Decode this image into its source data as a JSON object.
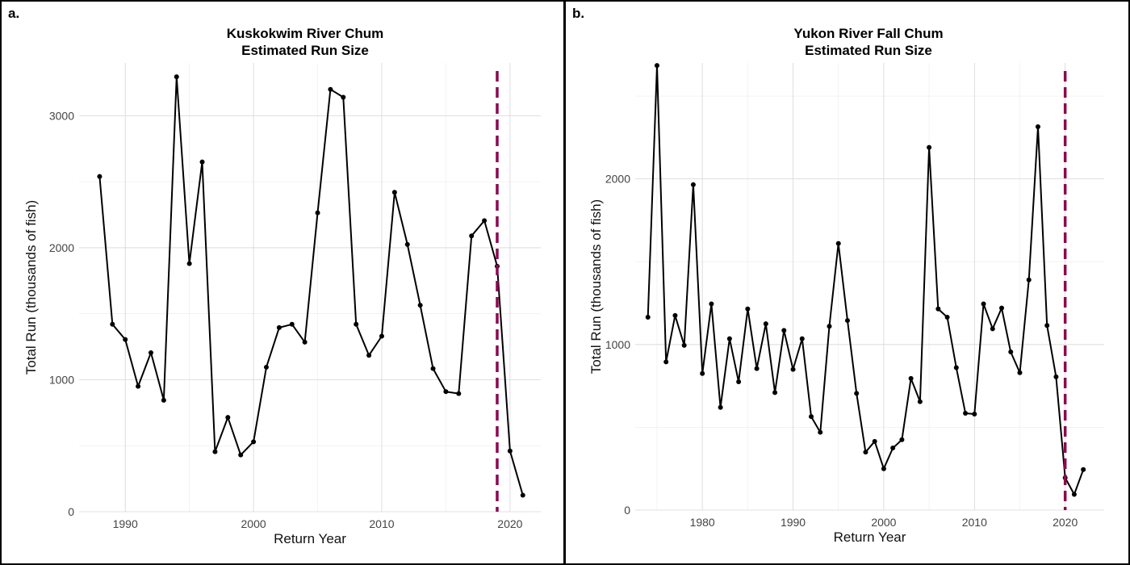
{
  "chart_data": [
    {
      "type": "line",
      "panel_tag": "a.",
      "title": [
        "Kuskokwim River Chum",
        "Estimated Run Size"
      ],
      "xlabel": "Return Year",
      "ylabel": "Total Run (thousands of fish)",
      "xlim": [
        1986.4,
        2022.4
      ],
      "ylim": [
        0,
        3400
      ],
      "x_ticks": [
        1990,
        2000,
        2010,
        2020
      ],
      "y_ticks": [
        0,
        1000,
        2000,
        3000
      ],
      "grid": true,
      "reference_line_x": 2019,
      "reference_line_color": "#8b0a4f",
      "series": [
        {
          "x": [
            1988,
            1989,
            1990,
            1991,
            1992,
            1993,
            1994,
            1995,
            1996,
            1997,
            1998,
            1999,
            2000,
            2001,
            2002,
            2003,
            2004,
            2005,
            2006,
            2007,
            2008,
            2009,
            2010,
            2011,
            2012,
            2013,
            2014,
            2015,
            2016,
            2017,
            2018,
            2019,
            2020,
            2021
          ],
          "y": [
            2540,
            1420,
            1305,
            950,
            1205,
            845,
            3295,
            1880,
            2650,
            455,
            715,
            430,
            530,
            1095,
            1395,
            1420,
            1285,
            2265,
            3200,
            3140,
            1420,
            1185,
            1330,
            2420,
            2025,
            1565,
            1085,
            910,
            895,
            2090,
            2205,
            1860,
            460,
            125
          ]
        }
      ]
    },
    {
      "type": "line",
      "panel_tag": "b.",
      "title": [
        "Yukon River Fall Chum",
        "Estimated Run Size"
      ],
      "xlabel": "Return Year",
      "ylabel": "Total Run (thousands of fish)",
      "xlim": [
        1972.6,
        2024.3
      ],
      "ylim": [
        0,
        2700
      ],
      "x_ticks": [
        1980,
        1990,
        2000,
        2010,
        2020
      ],
      "y_ticks": [
        0,
        1000,
        2000
      ],
      "grid": true,
      "reference_line_x": 2020,
      "reference_line_color": "#8b0a4f",
      "series": [
        {
          "x": [
            1974,
            1975,
            1976,
            1977,
            1978,
            1979,
            1980,
            1981,
            1982,
            1983,
            1984,
            1985,
            1986,
            1987,
            1988,
            1989,
            1990,
            1991,
            1992,
            1993,
            1994,
            1995,
            1996,
            1997,
            1998,
            1999,
            2000,
            2001,
            2002,
            2003,
            2004,
            2005,
            2006,
            2007,
            2008,
            2009,
            2010,
            2011,
            2012,
            2013,
            2014,
            2015,
            2016,
            2017,
            2018,
            2019,
            2020,
            2021,
            2022
          ],
          "y": [
            1165,
            2685,
            895,
            1175,
            995,
            1965,
            825,
            1245,
            620,
            1035,
            775,
            1215,
            855,
            1125,
            710,
            1085,
            850,
            1035,
            565,
            470,
            1110,
            1610,
            1145,
            705,
            350,
            415,
            250,
            375,
            425,
            795,
            655,
            2190,
            1215,
            1165,
            860,
            585,
            580,
            1245,
            1095,
            1220,
            955,
            830,
            1390,
            2315,
            1115,
            805,
            195,
            95,
            245
          ]
        }
      ]
    }
  ]
}
